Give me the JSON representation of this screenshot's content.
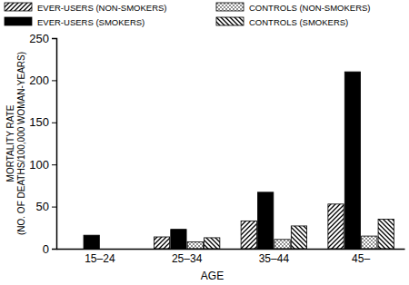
{
  "chart_data": {
    "type": "bar",
    "categories": [
      "15–24",
      "25–34",
      "35–44",
      "45–"
    ],
    "series": [
      {
        "name": "EVER-USERS (NON-SMOKERS)",
        "color": "#000000",
        "values": [
          0,
          14,
          33,
          53
        ]
      },
      {
        "name": "EVER-USERS (SMOKERS)",
        "color": "#000000",
        "values": [
          16,
          23,
          67,
          210
        ]
      },
      {
        "name": "CONTROLS (NON-SMOKERS)",
        "color": "#000000",
        "values": [
          0,
          8,
          11,
          15
        ]
      },
      {
        "name": "CONTROLS (SMOKERS)",
        "color": "#000000",
        "values": [
          0,
          13,
          27,
          35
        ]
      }
    ],
    "x_label": "AGE",
    "y_label": [
      "MORTALITY RATE",
      "(NO. OF DEATHS/100,000 WOMAN-YEARS)"
    ],
    "ylim": [
      0,
      250
    ],
    "yticks": [
      0,
      50,
      100,
      150,
      200,
      250
    ],
    "legend": "top"
  }
}
